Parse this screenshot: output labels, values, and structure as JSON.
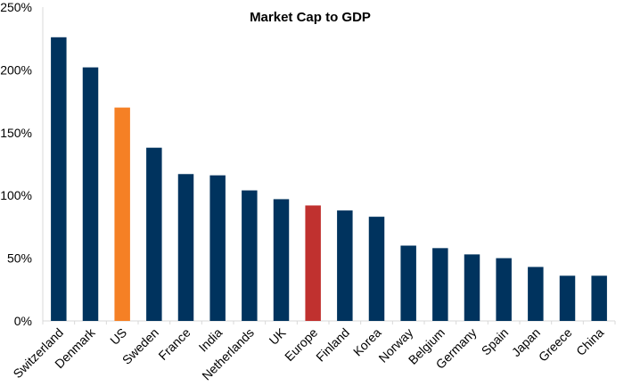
{
  "chart_data": {
    "type": "bar",
    "title": "Market Cap to GDP",
    "xlabel": "",
    "ylabel": "",
    "ylim": [
      0,
      250
    ],
    "yticks": [
      0,
      50,
      100,
      150,
      200,
      250
    ],
    "ytick_format": "percent",
    "grid": false,
    "legend": "none",
    "categories": [
      "Switzerland",
      "Denmark",
      "US",
      "Sweden",
      "France",
      "India",
      "Netherlands",
      "UK",
      "Europe",
      "Finland",
      "Korea",
      "Norway",
      "Belgium",
      "Germany",
      "Spain",
      "Japan",
      "Greece",
      "China"
    ],
    "values": [
      226,
      202,
      170,
      138,
      117,
      116,
      104,
      97,
      92,
      88,
      83,
      60,
      58,
      53,
      50,
      43,
      36,
      36
    ],
    "colors": {
      "default": "#00335E",
      "US": "#F58025",
      "Europe": "#C0312F"
    }
  }
}
